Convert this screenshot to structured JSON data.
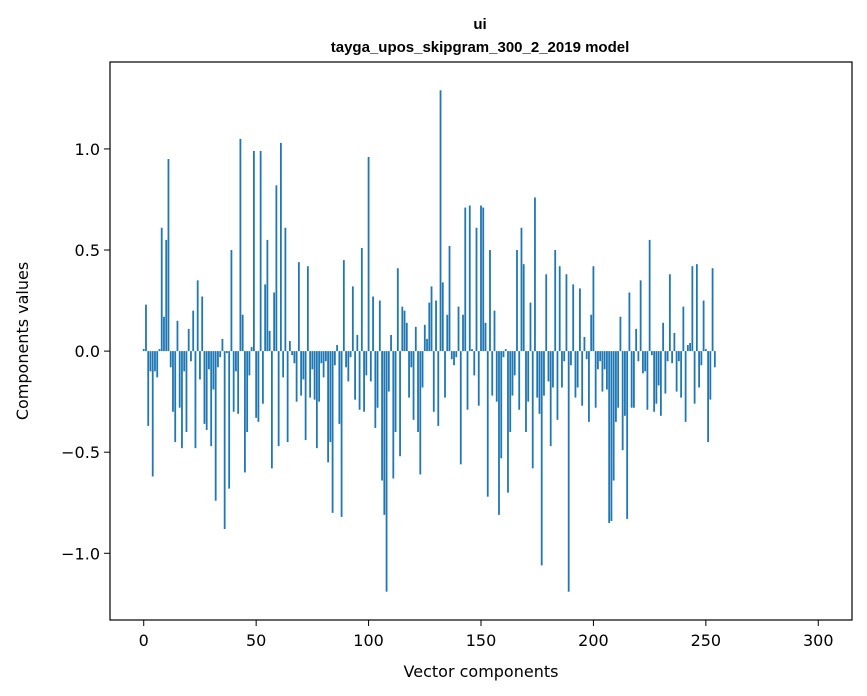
{
  "chart_data": {
    "type": "bar",
    "title": "ui",
    "subtitle": "tayga_upos_skipgram_300_2_2019 model",
    "xlabel": "Vector components",
    "ylabel": "Components values",
    "xlim": [
      -15,
      315
    ],
    "ylim": [
      -1.33,
      1.43
    ],
    "xticks": [
      0,
      50,
      100,
      150,
      200,
      250,
      300
    ],
    "xtick_labels": [
      "0",
      "50",
      "100",
      "150",
      "200",
      "250",
      "300"
    ],
    "yticks": [
      -1.0,
      -0.5,
      0.0,
      0.5,
      1.0
    ],
    "ytick_labels": [
      "−1.0",
      "−0.5",
      "0.0",
      "0.5",
      "1.0"
    ],
    "bar_color": "#1f77b4",
    "values": [
      0.01,
      0.23,
      -0.37,
      -0.1,
      -0.62,
      -0.1,
      -0.13,
      0.01,
      0.61,
      0.17,
      0.55,
      0.95,
      -0.08,
      -0.3,
      -0.45,
      0.15,
      -0.28,
      -0.48,
      -0.1,
      -0.4,
      0.11,
      -0.05,
      0.2,
      -0.48,
      0.35,
      -0.14,
      0.27,
      -0.36,
      -0.39,
      -0.09,
      -0.47,
      -0.19,
      -0.74,
      -0.08,
      -0.03,
      0.06,
      -0.88,
      -0.01,
      -0.68,
      0.5,
      -0.3,
      -0.1,
      -0.31,
      1.05,
      0.18,
      -0.6,
      -0.4,
      -0.12,
      0.02,
      0.99,
      -0.33,
      -0.35,
      0.99,
      -0.26,
      0.33,
      0.55,
      0.1,
      -0.58,
      0.29,
      0.82,
      -0.47,
      1.03,
      -0.13,
      0.61,
      -0.45,
      0.05,
      -0.02,
      -0.06,
      -0.25,
      0.44,
      -0.22,
      -0.14,
      -0.44,
      0.42,
      -0.23,
      -0.09,
      -0.24,
      -0.48,
      -0.25,
      -0.06,
      -0.13,
      -0.05,
      -0.55,
      -0.45,
      -0.8,
      -0.07,
      0.03,
      -0.36,
      -0.82,
      0.45,
      -0.08,
      -0.15,
      -0.03,
      0.32,
      -0.24,
      0.08,
      -0.29,
      0.51,
      -0.3,
      -0.12,
      0.96,
      -0.15,
      0.27,
      -0.38,
      -0.28,
      0.25,
      -0.64,
      -0.81,
      -1.19,
      -0.2,
      0.08,
      -0.63,
      -0.4,
      0.41,
      -0.52,
      0.22,
      0.2,
      0.14,
      -0.23,
      -0.08,
      -0.34,
      0.12,
      -0.4,
      -0.61,
      -0.18,
      0.13,
      0.06,
      0.24,
      0.32,
      -0.3,
      0.25,
      -0.37,
      1.29,
      0.34,
      -0.23,
      0.18,
      0.52,
      -0.04,
      -0.07,
      -0.03,
      0.22,
      -0.56,
      0.18,
      0.71,
      -0.29,
      0.72,
      0.01,
      -0.12,
      0.61,
      -0.27,
      0.72,
      0.71,
      0.14,
      -0.72,
      0.5,
      -0.22,
      0.2,
      -0.25,
      -0.81,
      -0.53,
      -0.03,
      0.01,
      -0.7,
      -0.4,
      -0.22,
      -0.12,
      0.5,
      -0.29,
      0.61,
      0.43,
      -0.4,
      -0.25,
      0.24,
      -0.58,
      0.76,
      -0.23,
      -0.31,
      -1.06,
      -0.22,
      0.38,
      -0.15,
      -0.47,
      -0.18,
      0.5,
      -0.34,
      0.42,
      -0.18,
      -0.05,
      0.38,
      -1.19,
      -0.07,
      0.33,
      -0.23,
      -0.18,
      0.31,
      -0.27,
      0.07,
      -0.04,
      -0.35,
      0.18,
      0.42,
      -0.28,
      -0.09,
      -0.05,
      -0.2,
      -0.09,
      -0.19,
      -0.85,
      -0.84,
      -0.64,
      -0.35,
      -0.28,
      0.17,
      -0.49,
      -0.32,
      -0.83,
      0.29,
      -0.28,
      -0.28,
      0.11,
      -0.05,
      0.35,
      -0.11,
      -0.1,
      -0.29,
      0.55,
      -0.02,
      -0.3,
      -0.26,
      -0.17,
      -0.32,
      0.14,
      -0.21,
      -0.05,
      0.38,
      -0.06,
      0.09,
      -0.2,
      -0.05,
      -0.23,
      0.22,
      -0.35,
      0.03,
      0.04,
      0.42,
      -0.26,
      0.43,
      -0.18,
      -0.07,
      0.25,
      0.01,
      -0.45,
      -0.24,
      0.41,
      -0.08
    ]
  }
}
